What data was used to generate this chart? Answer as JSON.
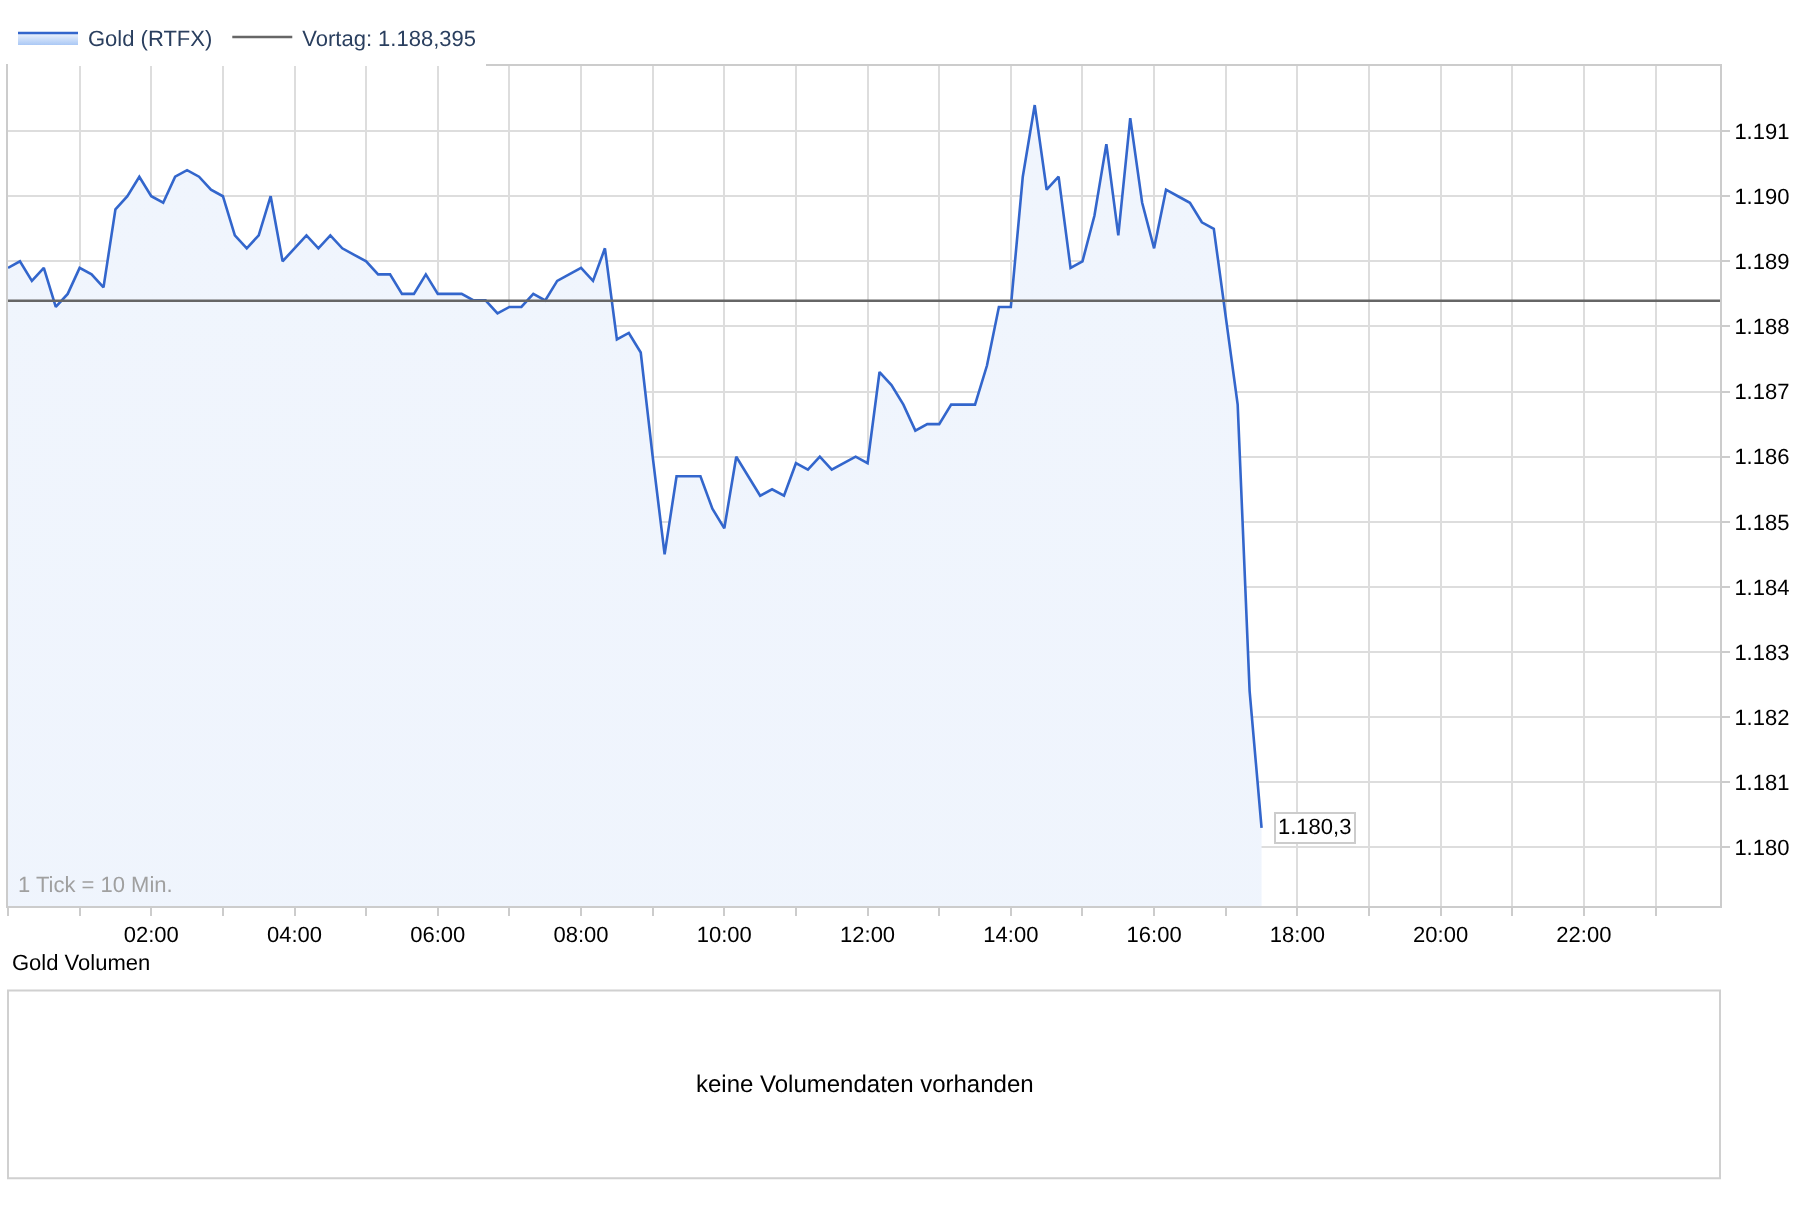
{
  "chart_data": {
    "type": "area",
    "x": [
      0,
      0.1667,
      0.3333,
      0.5,
      0.6667,
      0.8333,
      1,
      1.1667,
      1.3333,
      1.5,
      1.6667,
      1.8333,
      2,
      2.1667,
      2.3333,
      2.5,
      2.6667,
      2.8333,
      3,
      3.1667,
      3.3333,
      3.5,
      3.6667,
      3.8333,
      4,
      4.1667,
      4.3333,
      4.5,
      4.6667,
      4.8333,
      5,
      5.1667,
      5.3333,
      5.5,
      5.6667,
      5.8333,
      6,
      6.1667,
      6.3333,
      6.5,
      6.6667,
      6.8333,
      7,
      7.1667,
      7.3333,
      7.5,
      7.6667,
      7.8333,
      8,
      8.1667,
      8.3333,
      8.5,
      8.6667,
      8.8333,
      9,
      9.1667,
      9.3333,
      9.5,
      9.6667,
      9.8333,
      10,
      10.1667,
      10.3333,
      10.5,
      10.6667,
      10.8333,
      11,
      11.1667,
      11.3333,
      11.5,
      11.6667,
      11.8333,
      12,
      12.1667,
      12.3333,
      12.5,
      12.6667,
      12.8333,
      13,
      13.1667,
      13.3333,
      13.5,
      13.6667,
      13.8333,
      14,
      14.1667,
      14.3333,
      14.5,
      14.6667,
      14.8333,
      15,
      15.1667,
      15.3333,
      15.5,
      15.6667,
      15.8333,
      16,
      16.1667,
      16.3333,
      16.5,
      16.6667,
      16.8333,
      17.1667,
      17.3333,
      17.5
    ],
    "series": [
      {
        "name": "Gold (RTFX)",
        "color": "#3366cc",
        "values": [
          1188.9,
          1189.0,
          1188.7,
          1188.9,
          1188.3,
          1188.5,
          1188.9,
          1188.8,
          1188.6,
          1189.8,
          1190.0,
          1190.3,
          1190.0,
          1189.9,
          1190.3,
          1190.4,
          1190.3,
          1190.1,
          1190.0,
          1189.4,
          1189.2,
          1189.4,
          1190.0,
          1189.0,
          1189.2,
          1189.4,
          1189.2,
          1189.4,
          1189.2,
          1189.1,
          1189.0,
          1188.8,
          1188.8,
          1188.5,
          1188.5,
          1188.8,
          1188.5,
          1188.5,
          1188.5,
          1188.4,
          1188.4,
          1188.2,
          1188.3,
          1188.3,
          1188.5,
          1188.4,
          1188.7,
          1188.8,
          1188.9,
          1188.7,
          1189.2,
          1187.8,
          1187.9,
          1187.6,
          1186.0,
          1184.5,
          1185.7,
          1185.7,
          1185.7,
          1185.2,
          1184.9,
          1186.0,
          1185.7,
          1185.4,
          1185.5,
          1185.4,
          1185.9,
          1185.8,
          1186.0,
          1185.8,
          1185.9,
          1186.0,
          1185.9,
          1187.3,
          1187.1,
          1186.8,
          1186.4,
          1186.5,
          1186.5,
          1186.8,
          1186.8,
          1186.8,
          1187.4,
          1188.3,
          1188.3,
          1190.3,
          1191.4,
          1190.1,
          1190.3,
          1188.9,
          1189.0,
          1189.7,
          1190.8,
          1189.4,
          1191.2,
          1189.9,
          1189.2,
          1190.1,
          1190.0,
          1189.9,
          1189.6,
          1189.5,
          1186.8,
          1182.4,
          1180.3
        ]
      }
    ],
    "xlim": [
      0,
      23.9
    ],
    "ylim": [
      1179.1,
      1192
    ],
    "xticks": [
      {
        "value": 0,
        "label": null
      },
      {
        "value": 1,
        "label": null
      },
      {
        "value": 2,
        "label": "02:00"
      },
      {
        "value": 3,
        "label": null
      },
      {
        "value": 4,
        "label": "04:00"
      },
      {
        "value": 5,
        "label": null
      },
      {
        "value": 6,
        "label": "06:00"
      },
      {
        "value": 7,
        "label": null
      },
      {
        "value": 8,
        "label": "08:00"
      },
      {
        "value": 9,
        "label": null
      },
      {
        "value": 10,
        "label": "10:00"
      },
      {
        "value": 11,
        "label": null
      },
      {
        "value": 12,
        "label": "12:00"
      },
      {
        "value": 13,
        "label": null
      },
      {
        "value": 14,
        "label": "14:00"
      },
      {
        "value": 15,
        "label": null
      },
      {
        "value": 16,
        "label": "16:00"
      },
      {
        "value": 17,
        "label": null
      },
      {
        "value": 18,
        "label": "18:00"
      },
      {
        "value": 19,
        "label": null
      },
      {
        "value": 20,
        "label": "20:00"
      },
      {
        "value": 21,
        "label": null
      },
      {
        "value": 22,
        "label": "22:00"
      },
      {
        "value": 23,
        "label": null
      }
    ],
    "yticks": [
      {
        "value": 1180,
        "label": "1.180"
      },
      {
        "value": 1181,
        "label": "1.181"
      },
      {
        "value": 1182,
        "label": "1.182"
      },
      {
        "value": 1183,
        "label": "1.183"
      },
      {
        "value": 1184,
        "label": "1.184"
      },
      {
        "value": 1185,
        "label": "1.185"
      },
      {
        "value": 1186,
        "label": "1.186"
      },
      {
        "value": 1187,
        "label": "1.187"
      },
      {
        "value": 1188,
        "label": "1.188"
      },
      {
        "value": 1189,
        "label": "1.189"
      },
      {
        "value": 1190,
        "label": "1.190"
      },
      {
        "value": 1191,
        "label": "1.191"
      }
    ],
    "ref_lines": [
      {
        "axis": "y",
        "value": 1188.395,
        "label": "Vortag: 1.188,395",
        "color": "#666666"
      }
    ],
    "annotations": [
      "1 Tick = 10 Min.",
      {
        "text": "1.180,3",
        "x": 17.5,
        "y": 1180.3
      },
      "Gold Volumen",
      "keine Volumendaten vorhanden"
    ],
    "grid": true,
    "legend": "top left"
  }
}
